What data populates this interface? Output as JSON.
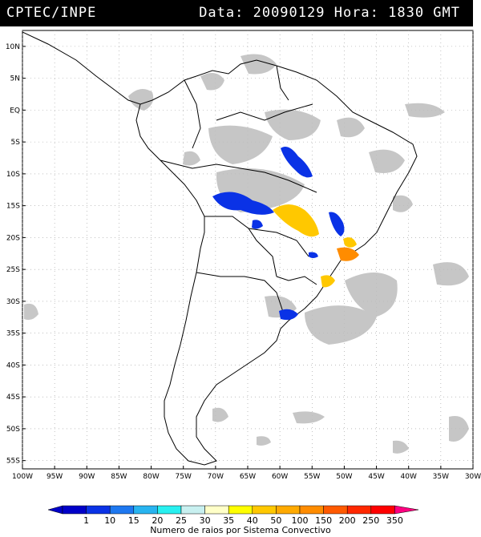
{
  "header": {
    "organization": "CPTEC/INPE",
    "timestamp": "Data: 20090129 Hora: 1830 GMT"
  },
  "map": {
    "latitude_labels": [
      "10N",
      "5N",
      "EQ",
      "5S",
      "10S",
      "15S",
      "20S",
      "25S",
      "30S",
      "35S",
      "40S",
      "45S",
      "50S",
      "55S"
    ],
    "longitude_labels": [
      "100W",
      "95W",
      "90W",
      "85W",
      "80W",
      "75W",
      "70W",
      "65W",
      "60W",
      "55W",
      "50W",
      "45W",
      "40W",
      "35W",
      "30W"
    ],
    "lat_range": [
      10,
      -55
    ],
    "lon_range": [
      -100,
      -30
    ],
    "cloud_color": "#bdbdbd",
    "coastline_color": "#000000"
  },
  "legend": {
    "title": "Numero de raios por Sistema Convectivo",
    "tick_labels": [
      "1",
      "10",
      "15",
      "20",
      "25",
      "30",
      "35",
      "40",
      "50",
      "100",
      "150",
      "200",
      "250",
      "350"
    ],
    "colors": [
      "#0000c8",
      "#0a32e6",
      "#1e78f0",
      "#28b4f0",
      "#28f0f0",
      "#c8f0f0",
      "#ffffc8",
      "#ffff00",
      "#ffc800",
      "#ffaa00",
      "#ff8c00",
      "#ff5a00",
      "#ff2800",
      "#ff0000",
      "#ff0080"
    ]
  }
}
